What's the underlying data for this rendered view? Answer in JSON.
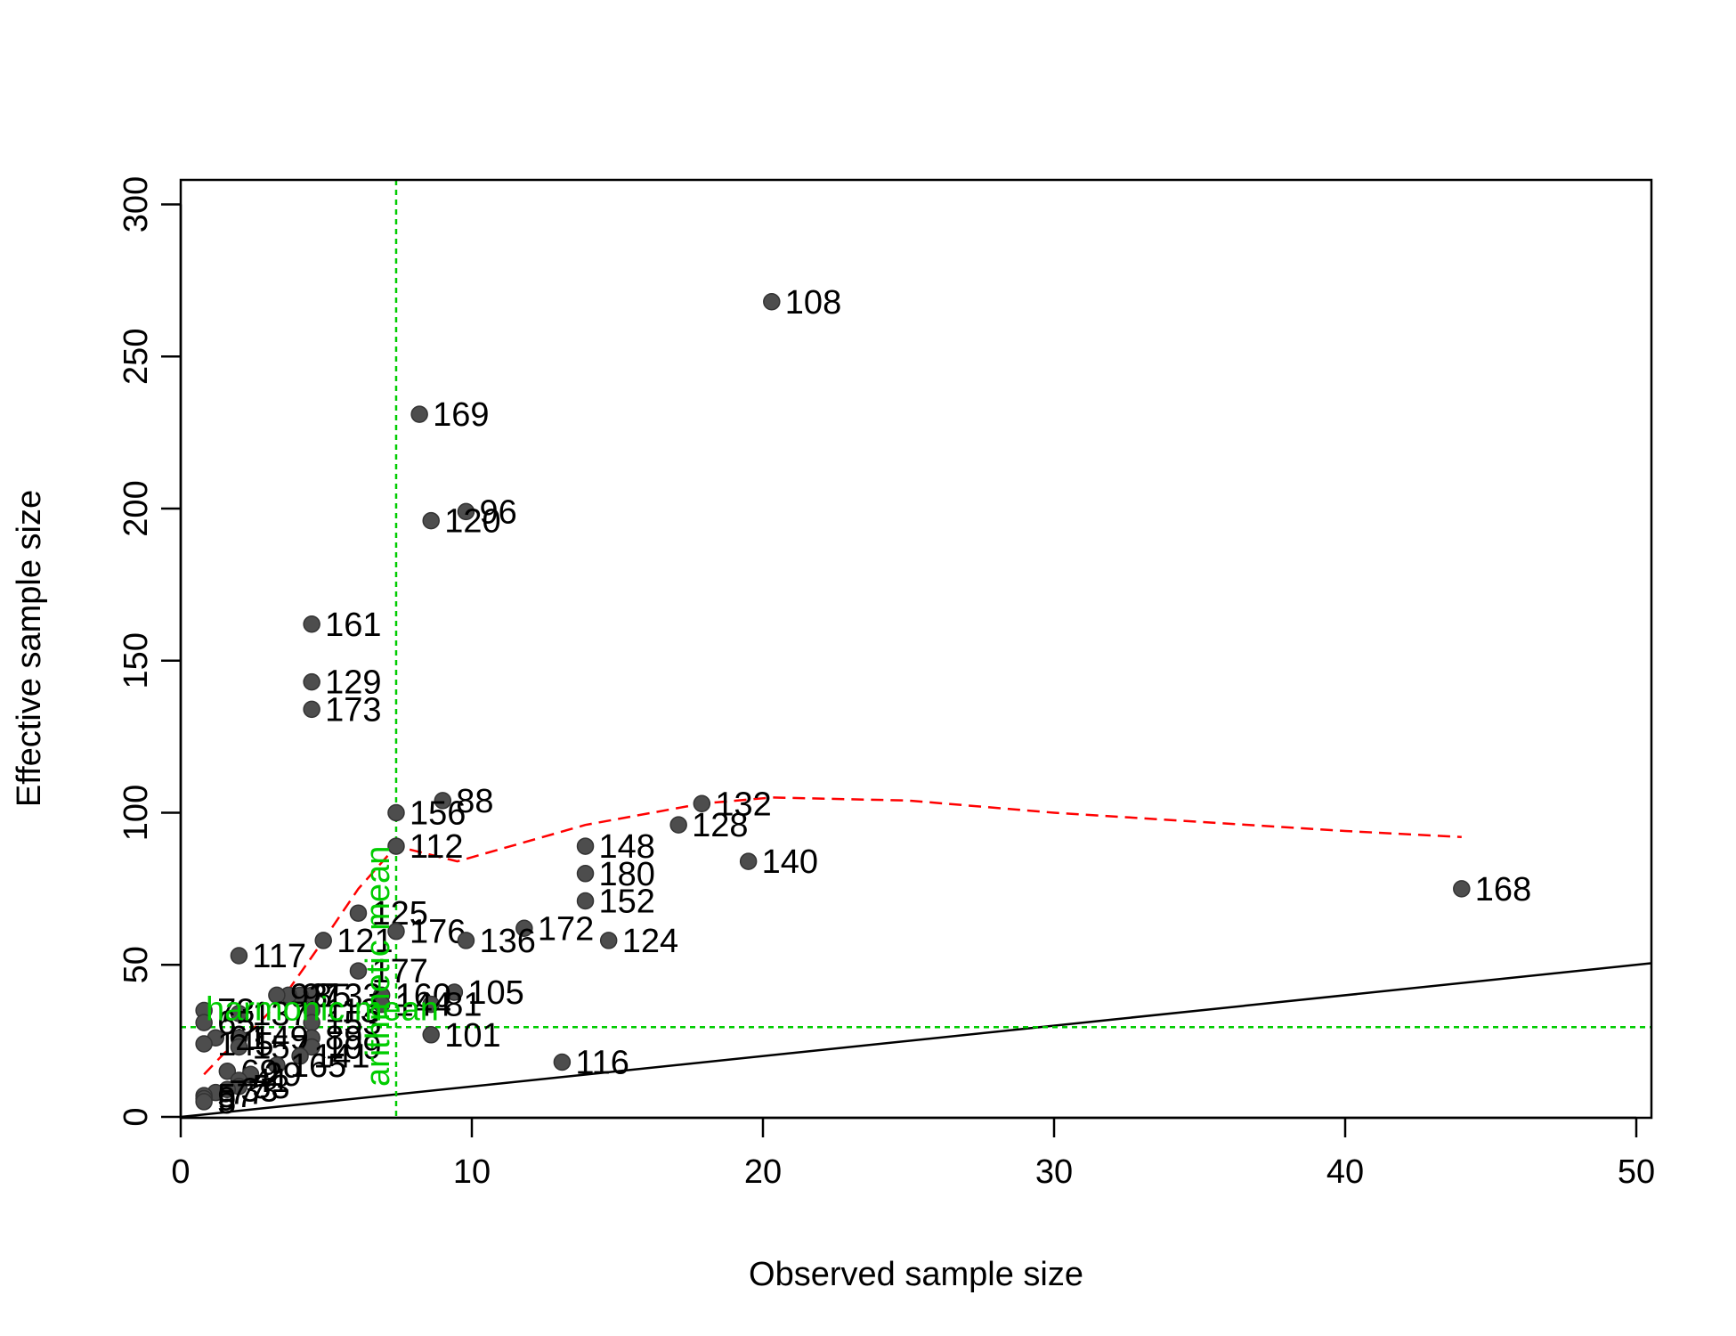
{
  "chart_data": {
    "type": "scatter",
    "title": "",
    "xlabel": "Observed sample size",
    "ylabel": "Effective sample size",
    "xlim": [
      0,
      50.5
    ],
    "ylim": [
      0,
      300
    ],
    "xticks": [
      0,
      10,
      20,
      30,
      40,
      50
    ],
    "yticks": [
      0,
      50,
      100,
      150,
      200,
      250,
      300
    ],
    "grid": false,
    "points": [
      {
        "label": "108",
        "x": 20.3,
        "y": 268
      },
      {
        "label": "169",
        "x": 8.2,
        "y": 231
      },
      {
        "label": "96",
        "x": 9.8,
        "y": 199
      },
      {
        "label": "120",
        "x": 8.6,
        "y": 196
      },
      {
        "label": "161",
        "x": 4.5,
        "y": 162
      },
      {
        "label": "129",
        "x": 4.5,
        "y": 143
      },
      {
        "label": "173",
        "x": 4.5,
        "y": 134
      },
      {
        "label": "88",
        "x": 9.0,
        "y": 104
      },
      {
        "label": "132",
        "x": 17.9,
        "y": 103
      },
      {
        "label": "156",
        "x": 7.4,
        "y": 100
      },
      {
        "label": "128",
        "x": 17.1,
        "y": 96
      },
      {
        "label": "112",
        "x": 7.4,
        "y": 89
      },
      {
        "label": "148",
        "x": 13.9,
        "y": 89
      },
      {
        "label": "140",
        "x": 19.5,
        "y": 84
      },
      {
        "label": "180",
        "x": 13.9,
        "y": 80
      },
      {
        "label": "168",
        "x": 44.0,
        "y": 75
      },
      {
        "label": "152",
        "x": 13.9,
        "y": 71
      },
      {
        "label": "125",
        "x": 6.1,
        "y": 67
      },
      {
        "label": "172",
        "x": 11.8,
        "y": 62
      },
      {
        "label": "176",
        "x": 7.4,
        "y": 61
      },
      {
        "label": "124",
        "x": 14.7,
        "y": 58
      },
      {
        "label": "136",
        "x": 9.8,
        "y": 58
      },
      {
        "label": "121",
        "x": 4.9,
        "y": 58
      },
      {
        "label": "117",
        "x": 2.0,
        "y": 53
      },
      {
        "label": "177",
        "x": 6.1,
        "y": 48
      },
      {
        "label": "105",
        "x": 9.4,
        "y": 41
      },
      {
        "label": "160",
        "x": 6.9,
        "y": 40
      },
      {
        "label": "133",
        "x": 4.5,
        "y": 40
      },
      {
        "label": "85",
        "x": 4.1,
        "y": 40
      },
      {
        "label": "97",
        "x": 3.7,
        "y": 40
      },
      {
        "label": "93",
        "x": 3.3,
        "y": 40
      },
      {
        "label": "81",
        "x": 8.6,
        "y": 37
      },
      {
        "label": "144",
        "x": 6.9,
        "y": 37
      },
      {
        "label": "113",
        "x": 4.5,
        "y": 35
      },
      {
        "label": "137",
        "x": 2.0,
        "y": 34
      },
      {
        "label": "73",
        "x": 0.8,
        "y": 35
      },
      {
        "label": "101",
        "x": 8.6,
        "y": 27
      },
      {
        "label": "153",
        "x": 4.5,
        "y": 31
      },
      {
        "label": "89",
        "x": 4.5,
        "y": 26
      },
      {
        "label": "109",
        "x": 4.5,
        "y": 23
      },
      {
        "label": "65",
        "x": 0.8,
        "y": 31
      },
      {
        "label": "149",
        "x": 2.0,
        "y": 26
      },
      {
        "label": "61",
        "x": 1.2,
        "y": 26
      },
      {
        "label": "157",
        "x": 2.0,
        "y": 23
      },
      {
        "label": "145",
        "x": 0.8,
        "y": 24
      },
      {
        "label": "116",
        "x": 13.1,
        "y": 18
      },
      {
        "label": "141",
        "x": 4.1,
        "y": 20
      },
      {
        "label": "165",
        "x": 3.3,
        "y": 17
      },
      {
        "label": "69",
        "x": 1.6,
        "y": 15
      },
      {
        "label": "29",
        "x": 2.4,
        "y": 14
      },
      {
        "label": "41",
        "x": 2.0,
        "y": 12
      },
      {
        "label": "53",
        "x": 2.0,
        "y": 10
      },
      {
        "label": "33",
        "x": 1.6,
        "y": 9
      },
      {
        "label": "77",
        "x": 1.2,
        "y": 8
      },
      {
        "label": "57",
        "x": 0.8,
        "y": 7
      },
      {
        "label": "9",
        "x": 0.8,
        "y": 6
      },
      {
        "label": "5",
        "x": 0.8,
        "y": 5
      }
    ],
    "lowess": {
      "x": [
        0.8,
        1.5,
        2.5,
        3.5,
        4.9,
        6.1,
        7.4,
        9.5,
        13.9,
        17.9,
        20.3,
        25,
        30,
        35,
        40,
        44.0
      ],
      "y": [
        14,
        21,
        29,
        39,
        58,
        75,
        89,
        84,
        96,
        103,
        105,
        104,
        100,
        97,
        94,
        92
      ]
    },
    "identity_line": {
      "slope": 1,
      "intercept": 0
    },
    "reference_lines": {
      "vertical_x": 7.4,
      "vertical_label": "arithmetic mean",
      "horizontal_y": 29.5,
      "horizontal_label": "harmonic mean"
    },
    "colors": {
      "points": "#4d4d4d",
      "lowess": "#ff0000",
      "reference": "#00cc00",
      "identity": "#000000"
    }
  }
}
